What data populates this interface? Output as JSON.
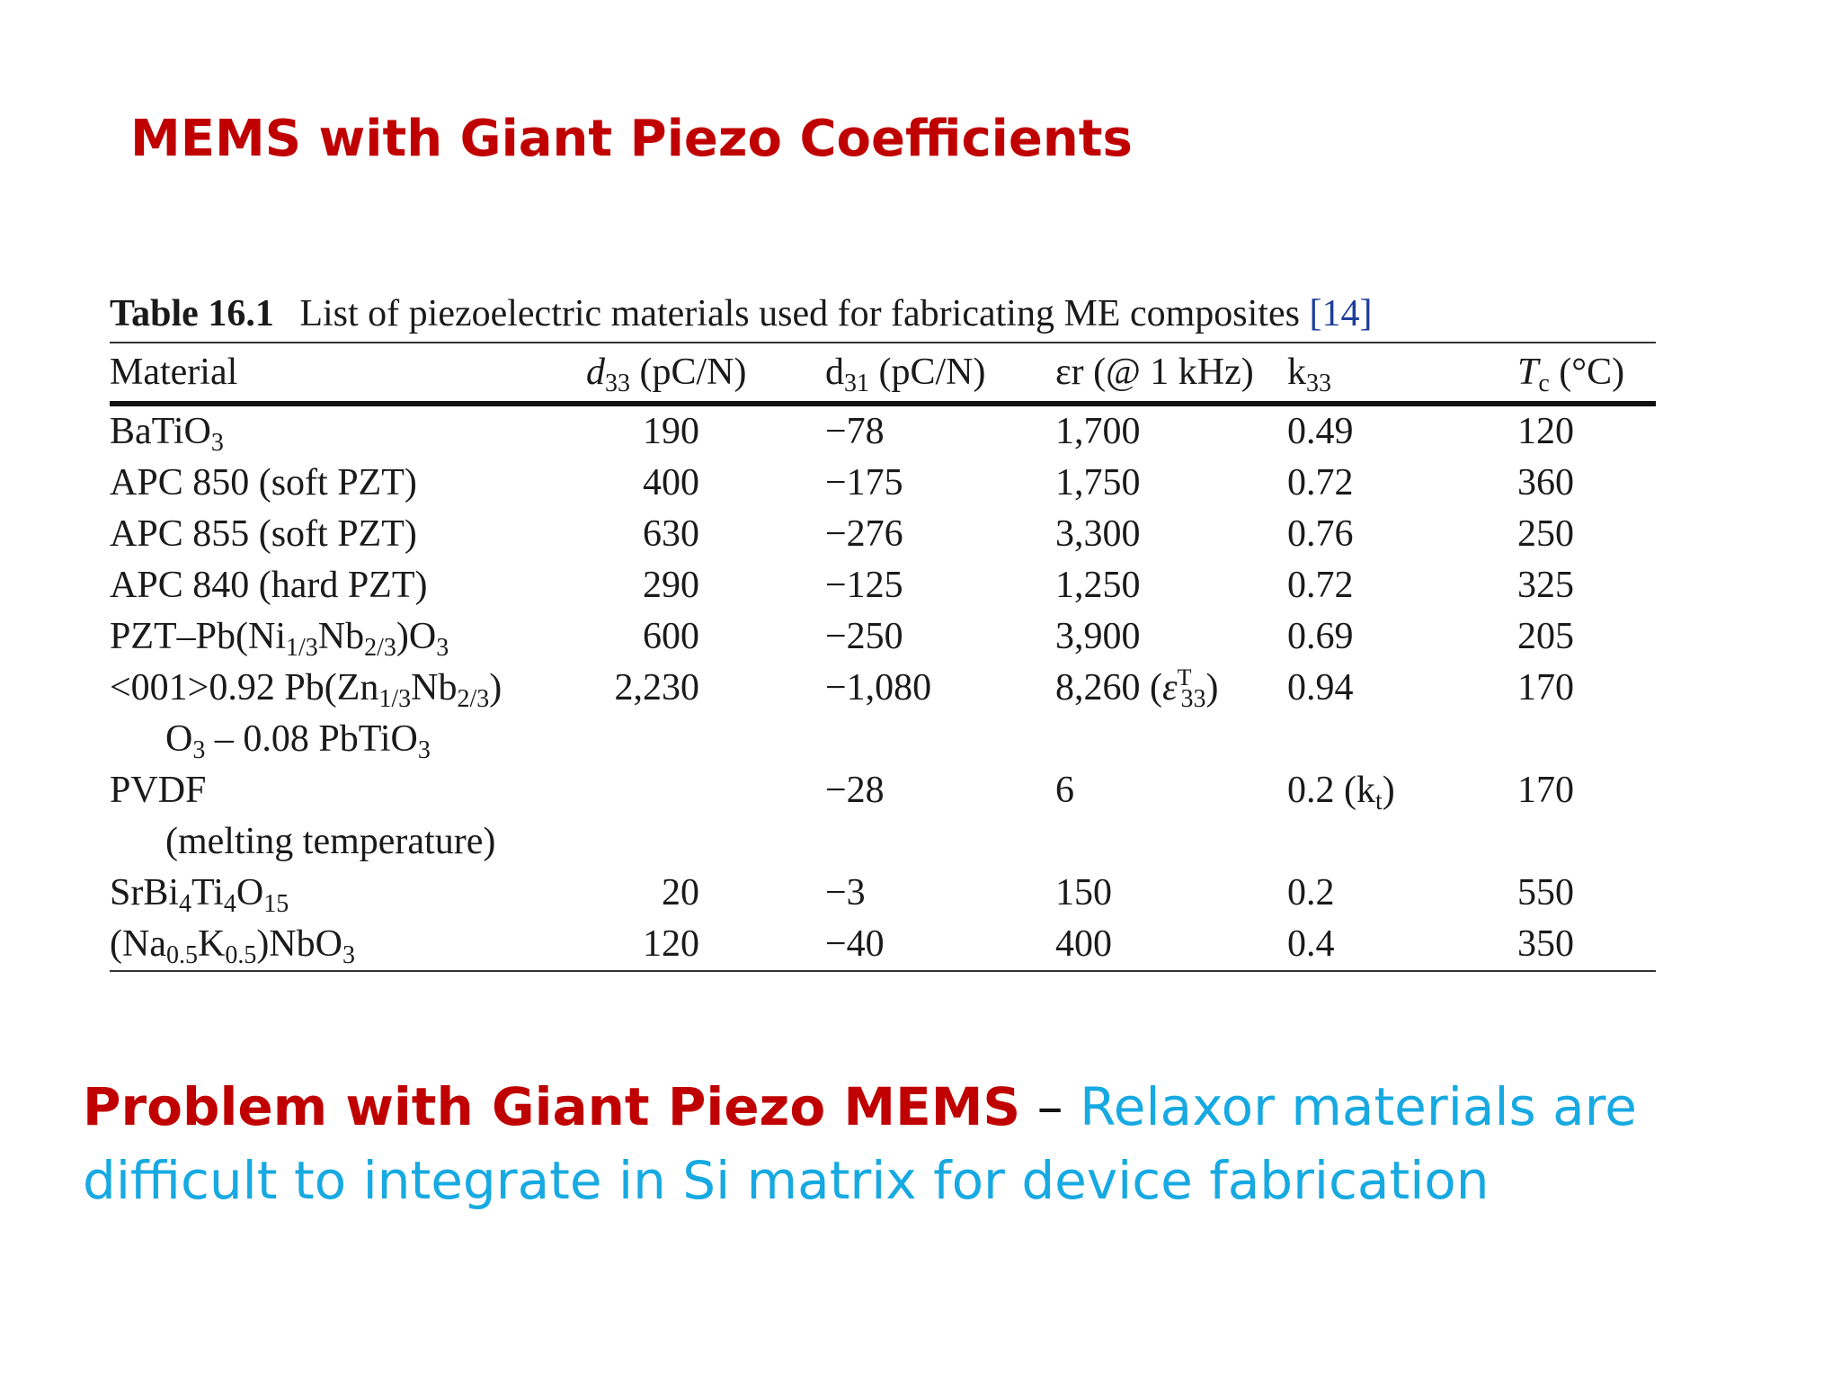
{
  "slide": {
    "title": "MEMS with Giant Piezo Coefficients",
    "problem_label": "Problem with Giant Piezo MEMS",
    "problem_dash": "–",
    "problem_text": "Relaxor materials are difficult to integrate in Si matrix for device fabrication"
  },
  "table": {
    "caption_label": "Table 16.1",
    "caption_text": "List of piezoelectric materials used for fabricating ME composites",
    "caption_ref": "[14]",
    "headers": [
      "Material",
      "d33 (pC/N)",
      "d31 (pC/N)",
      "εr (@ 1 kHz)",
      "k33",
      "Tc (°C)"
    ],
    "rows": [
      {
        "material": "BaTiO3",
        "d33": "190",
        "d31": "−78",
        "er": "1,700",
        "k33": "0.49",
        "tc": "120"
      },
      {
        "material": "APC 850 (soft PZT)",
        "d33": "400",
        "d31": "−175",
        "er": "1,750",
        "k33": "0.72",
        "tc": "360"
      },
      {
        "material": "APC 855 (soft PZT)",
        "d33": "630",
        "d31": "−276",
        "er": "3,300",
        "k33": "0.76",
        "tc": "250"
      },
      {
        "material": "APC 840 (hard PZT)",
        "d33": "290",
        "d31": "−125",
        "er": "1,250",
        "k33": "0.72",
        "tc": "325"
      },
      {
        "material": "PZT–Pb(Ni1/3Nb2/3)O3",
        "d33": "600",
        "d31": "−250",
        "er": "3,900",
        "k33": "0.69",
        "tc": "205"
      },
      {
        "material": "<001>0.92 Pb(Zn1/3Nb2/3)",
        "material_cont": "O3 – 0.08 PbTiO3",
        "d33": "2,230",
        "d31": "−1,080",
        "er": "8,260 (εT33)",
        "k33": "0.94",
        "tc": "170"
      },
      {
        "material": "PVDF",
        "material_cont": "(melting temperature)",
        "d33": "",
        "d31": "−28",
        "er": "6",
        "k33": "0.2 (kt)",
        "tc": "170"
      },
      {
        "material": "SrBi4Ti4O15",
        "d33": "20",
        "d31": "−3",
        "er": "150",
        "k33": "0.2",
        "tc": "550"
      },
      {
        "material": "(Na0.5K0.5)NbO3",
        "d33": "120",
        "d31": "−40",
        "er": "400",
        "k33": "0.4",
        "tc": "350"
      }
    ]
  },
  "colors": {
    "title": "#c00000",
    "problem_label": "#c00000",
    "problem_text": "#17a9e1",
    "ref": "#1f3e9c"
  }
}
